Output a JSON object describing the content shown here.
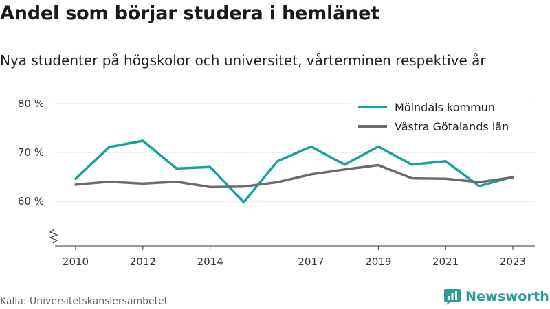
{
  "header": {
    "title": "Andel som börjar studera i hemlänet",
    "subtitle": "Nya studenter på högskolor och universitet, vårterminen respektive år"
  },
  "footer": {
    "source": "Källa: Universitetskanslersämbetet",
    "brand": "Newsworthy",
    "brand_color": "#2a9d95"
  },
  "chart_data": {
    "type": "line",
    "x": [
      2010,
      2011,
      2012,
      2013,
      2014,
      2015,
      2016,
      2017,
      2018,
      2019,
      2020,
      2021,
      2022,
      2023
    ],
    "x_tick_values": [
      2010,
      2012,
      2014,
      2017,
      2019,
      2021,
      2023
    ],
    "x_tick_labels": [
      "2010",
      "2012",
      "2014",
      "2017",
      "2019",
      "2021",
      "2023"
    ],
    "y_tick_values": [
      60,
      70,
      80
    ],
    "y_tick_labels": [
      "60 %",
      "70 %",
      "80 %"
    ],
    "ylim": [
      50,
      83
    ],
    "y_axis_break": true,
    "grid": "horizontal",
    "legend_position": "top-right",
    "series": [
      {
        "name": "Mölndals kommun",
        "color": "#17a19a",
        "values": [
          64.6,
          71.1,
          72.4,
          66.7,
          67.0,
          59.8,
          68.2,
          71.2,
          67.5,
          71.2,
          67.5,
          68.2,
          63.1,
          65.0
        ]
      },
      {
        "name": "Västra Götalands län",
        "color": "#6b6b6f",
        "values": [
          63.4,
          64.0,
          63.6,
          64.0,
          62.9,
          63.0,
          63.9,
          65.5,
          66.5,
          67.4,
          64.7,
          64.6,
          63.9,
          64.9
        ]
      }
    ]
  }
}
